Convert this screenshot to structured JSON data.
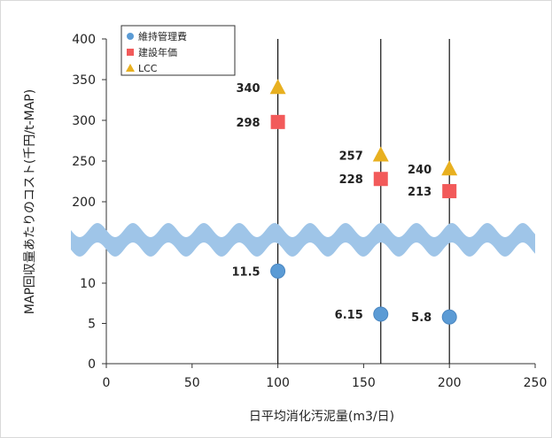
{
  "chart_data": {
    "type": "scatter",
    "xlabel": "日平均消化汚泥量(m3/日)",
    "ylabel": "MAP回収量あたりのコスト(千円/t-MAP)",
    "x_ticks": [
      "0",
      "50",
      "100",
      "150",
      "200",
      "250"
    ],
    "y_ticks_upper": [
      "200",
      "250",
      "300",
      "350",
      "400"
    ],
    "y_ticks_lower": [
      "0",
      "5",
      "10"
    ],
    "xlim": [
      0,
      250
    ],
    "ylim_lower": [
      0,
      15
    ],
    "ylim_upper": [
      175,
      400
    ],
    "axis_break": true,
    "grid": false,
    "vertical_reference_lines_x": [
      100,
      160,
      200
    ],
    "legend_position": "top-left",
    "series": [
      {
        "name": "維持管理費",
        "marker": "circle",
        "color": "#5b9bd5",
        "points": [
          {
            "x": 100,
            "y": 11.5,
            "label": "11.5"
          },
          {
            "x": 160,
            "y": 6.15,
            "label": "6.15"
          },
          {
            "x": 200,
            "y": 5.8,
            "label": "5.8"
          }
        ]
      },
      {
        "name": "建設年価",
        "marker": "square",
        "color": "#f25a5a",
        "points": [
          {
            "x": 100,
            "y": 298,
            "label": "298"
          },
          {
            "x": 160,
            "y": 228,
            "label": "228"
          },
          {
            "x": 200,
            "y": 213,
            "label": "213"
          }
        ]
      },
      {
        "name": "LCC",
        "marker": "triangle",
        "color": "#e8b020",
        "points": [
          {
            "x": 100,
            "y": 340,
            "label": "340"
          },
          {
            "x": 160,
            "y": 257,
            "label": "257"
          },
          {
            "x": 200,
            "y": 240,
            "label": "240"
          }
        ]
      }
    ],
    "break_color": "#9fc5e8"
  }
}
